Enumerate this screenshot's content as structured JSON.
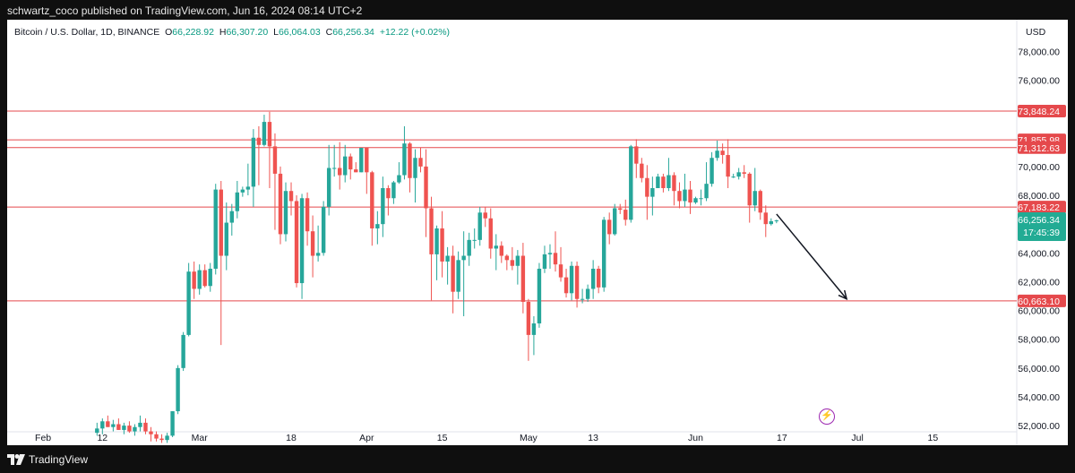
{
  "header": {
    "published_text": "schwartz_coco published on TradingView.com, Jun 16, 2024 08:14 UTC+2"
  },
  "legend": {
    "symbol": "Bitcoin / U.S. Dollar, 1D, BINANCE",
    "o_label": "O",
    "o_value": "66,228.92",
    "h_label": "H",
    "h_value": "66,307.20",
    "l_label": "L",
    "l_value": "66,064.03",
    "c_label": "C",
    "c_value": "66,256.34",
    "change": "+12.22 (+0.02%)"
  },
  "currency": "USD",
  "footer": {
    "brand": "TradingView"
  },
  "colors": {
    "up": "#26a69a",
    "down": "#ef5350",
    "level_line": "#e5494c",
    "price_badge": "#22ab94",
    "arrow": "#131722"
  },
  "chart_data": {
    "type": "candlestick",
    "symbol": "BTCUSD",
    "exchange": "BINANCE",
    "interval": "1D",
    "x_tick_labels": [
      "Feb",
      "12",
      "Mar",
      "18",
      "Apr",
      "15",
      "May",
      "13",
      "Jun",
      "17",
      "Jul",
      "15"
    ],
    "y_tick_labels": [
      "52,000.00",
      "54,000.00",
      "56,000.00",
      "58,000.00",
      "60,000.00",
      "62,000.00",
      "64,000.00",
      "66,000.00",
      "68,000.00",
      "70,000.00",
      "72,000.00",
      "74,000.00",
      "76,000.00",
      "78,000.00"
    ],
    "ylim": [
      50700,
      80200
    ],
    "horizontal_levels": [
      {
        "price": 73848.24,
        "label": "73,848.24"
      },
      {
        "price": 71855.98,
        "label": "71,855.98"
      },
      {
        "price": 71312.63,
        "label": "71,312.63"
      },
      {
        "price": 67183.22,
        "label": "67,183.22"
      },
      {
        "price": 60663.1,
        "label": "60,663.10"
      }
    ],
    "last_price": {
      "label": "66,256.34",
      "countdown": "17:45:39"
    },
    "projection_arrow": {
      "from": {
        "date": "2024-06-16",
        "price": 66700
      },
      "to": {
        "date": "2024-06-29",
        "price": 60800
      }
    },
    "candles": [
      [
        "2024-02-11",
        51500,
        52200,
        51300,
        51800
      ],
      [
        "2024-02-12",
        51800,
        52500,
        51400,
        52300
      ],
      [
        "2024-02-13",
        52300,
        52700,
        51900,
        51900
      ],
      [
        "2024-02-14",
        51900,
        52400,
        51600,
        52100
      ],
      [
        "2024-02-15",
        52100,
        52500,
        51700,
        51700
      ],
      [
        "2024-02-16",
        51700,
        52200,
        51400,
        52000
      ],
      [
        "2024-02-17",
        52000,
        52300,
        51500,
        51600
      ],
      [
        "2024-02-18",
        51600,
        52100,
        51300,
        51900
      ],
      [
        "2024-02-19",
        51900,
        52700,
        51600,
        52200
      ],
      [
        "2024-02-20",
        52200,
        52500,
        51400,
        51600
      ],
      [
        "2024-02-21",
        51600,
        51900,
        50900,
        51400
      ],
      [
        "2024-02-22",
        51400,
        51600,
        50900,
        51100
      ],
      [
        "2024-02-23",
        51100,
        51400,
        50800,
        51000
      ],
      [
        "2024-02-24",
        51000,
        51500,
        50800,
        51300
      ],
      [
        "2024-02-25",
        51300,
        53000,
        51200,
        53000
      ],
      [
        "2024-02-26",
        53000,
        56200,
        52800,
        56000
      ],
      [
        "2024-02-27",
        56000,
        58500,
        55800,
        58300
      ],
      [
        "2024-02-28",
        58300,
        63300,
        58200,
        62700
      ],
      [
        "2024-02-29",
        62700,
        63400,
        60800,
        61500
      ],
      [
        "2024-03-01",
        61500,
        63200,
        61100,
        62800
      ],
      [
        "2024-03-02",
        62800,
        63200,
        61600,
        61700
      ],
      [
        "2024-03-03",
        61700,
        63300,
        61300,
        62900
      ],
      [
        "2024-03-04",
        62900,
        68800,
        62500,
        68400
      ],
      [
        "2024-03-05",
        68400,
        69000,
        57600,
        63800
      ],
      [
        "2024-03-06",
        63800,
        67500,
        62800,
        66100
      ],
      [
        "2024-03-07",
        66100,
        67400,
        65200,
        66900
      ],
      [
        "2024-03-08",
        66900,
        69000,
        66400,
        68200
      ],
      [
        "2024-03-09",
        68200,
        68600,
        67900,
        68400
      ],
      [
        "2024-03-10",
        68400,
        70200,
        68000,
        68600
      ],
      [
        "2024-03-11",
        68600,
        72600,
        67200,
        72000
      ],
      [
        "2024-03-12",
        72000,
        72800,
        68700,
        71500
      ],
      [
        "2024-03-13",
        71500,
        73600,
        71400,
        73100
      ],
      [
        "2024-03-14",
        73100,
        73800,
        68500,
        71400
      ],
      [
        "2024-03-15",
        71400,
        72300,
        65600,
        69500
      ],
      [
        "2024-03-16",
        69500,
        70000,
        64600,
        65300
      ],
      [
        "2024-03-17",
        65300,
        68900,
        64800,
        68300
      ],
      [
        "2024-03-18",
        68300,
        68900,
        66600,
        67600
      ],
      [
        "2024-03-19",
        67600,
        68000,
        61600,
        61900
      ],
      [
        "2024-03-20",
        61900,
        68100,
        60800,
        67800
      ],
      [
        "2024-03-21",
        67800,
        68200,
        64500,
        65500
      ],
      [
        "2024-03-22",
        65500,
        66600,
        62300,
        63800
      ],
      [
        "2024-03-23",
        63800,
        65900,
        63400,
        64000
      ],
      [
        "2024-03-24",
        64000,
        67600,
        63800,
        67200
      ],
      [
        "2024-03-25",
        67200,
        71500,
        66600,
        69900
      ],
      [
        "2024-03-26",
        69900,
        71500,
        69300,
        69900
      ],
      [
        "2024-03-27",
        69900,
        71700,
        68400,
        69400
      ],
      [
        "2024-03-28",
        69400,
        71500,
        68900,
        70700
      ],
      [
        "2024-03-29",
        70700,
        70900,
        69100,
        69800
      ],
      [
        "2024-03-30",
        69800,
        70300,
        69600,
        69600
      ],
      [
        "2024-03-31",
        69600,
        71300,
        69600,
        71300
      ],
      [
        "2024-04-01",
        71300,
        71300,
        68100,
        69600
      ],
      [
        "2024-04-02",
        69600,
        69700,
        64500,
        65700
      ],
      [
        "2024-04-03",
        65700,
        66900,
        64600,
        66000
      ],
      [
        "2024-04-04",
        66000,
        69300,
        65100,
        68500
      ],
      [
        "2024-04-05",
        68500,
        68700,
        66600,
        67800
      ],
      [
        "2024-04-06",
        67800,
        69000,
        67400,
        68900
      ],
      [
        "2024-04-07",
        68900,
        70300,
        68800,
        69400
      ],
      [
        "2024-04-08",
        69400,
        72800,
        69100,
        71600
      ],
      [
        "2024-04-09",
        71600,
        71700,
        68200,
        69200
      ],
      [
        "2024-04-10",
        69200,
        71200,
        67500,
        70600
      ],
      [
        "2024-04-11",
        70600,
        71300,
        69600,
        70000
      ],
      [
        "2024-04-12",
        70000,
        71200,
        65100,
        67100
      ],
      [
        "2024-04-13",
        67100,
        67900,
        60700,
        63900
      ],
      [
        "2024-04-14",
        63900,
        65900,
        62100,
        65700
      ],
      [
        "2024-04-15",
        65700,
        66900,
        62300,
        63400
      ],
      [
        "2024-04-16",
        63400,
        64400,
        61800,
        63800
      ],
      [
        "2024-04-17",
        63800,
        64500,
        59800,
        61300
      ],
      [
        "2024-04-18",
        61300,
        64100,
        60800,
        63500
      ],
      [
        "2024-04-19",
        63500,
        65500,
        59600,
        63800
      ],
      [
        "2024-04-20",
        63800,
        65400,
        63100,
        64900
      ],
      [
        "2024-04-21",
        64900,
        65700,
        64300,
        64900
      ],
      [
        "2024-04-22",
        64900,
        67200,
        64500,
        66800
      ],
      [
        "2024-04-23",
        66800,
        67200,
        65800,
        66400
      ],
      [
        "2024-04-24",
        66400,
        67100,
        63600,
        64300
      ],
      [
        "2024-04-25",
        64300,
        65300,
        62800,
        64500
      ],
      [
        "2024-04-26",
        64500,
        64800,
        63300,
        63800
      ],
      [
        "2024-04-27",
        63800,
        63900,
        62800,
        63500
      ],
      [
        "2024-04-28",
        63500,
        64400,
        62800,
        63100
      ],
      [
        "2024-04-29",
        63100,
        64200,
        61800,
        63800
      ],
      [
        "2024-04-30",
        63800,
        64700,
        59800,
        60600
      ],
      [
        "2024-05-01",
        60600,
        60800,
        56500,
        58300
      ],
      [
        "2024-05-02",
        58300,
        59600,
        56900,
        59100
      ],
      [
        "2024-05-03",
        59100,
        63300,
        58800,
        62900
      ],
      [
        "2024-05-04",
        62900,
        64500,
        62600,
        63900
      ],
      [
        "2024-05-05",
        63900,
        64600,
        62900,
        64000
      ],
      [
        "2024-05-06",
        64000,
        65500,
        62700,
        63200
      ],
      [
        "2024-05-07",
        63200,
        64400,
        62000,
        62300
      ],
      [
        "2024-05-08",
        62300,
        62900,
        60900,
        61200
      ],
      [
        "2024-05-09",
        61200,
        63400,
        60700,
        63100
      ],
      [
        "2024-05-10",
        63100,
        63400,
        60200,
        60800
      ],
      [
        "2024-05-11",
        60800,
        61500,
        60500,
        60800
      ],
      [
        "2024-05-12",
        60800,
        61800,
        60600,
        61500
      ],
      [
        "2024-05-13",
        61500,
        63500,
        60800,
        62900
      ],
      [
        "2024-05-14",
        62900,
        63100,
        61200,
        61600
      ],
      [
        "2024-05-15",
        61600,
        66500,
        61300,
        66300
      ],
      [
        "2024-05-16",
        66300,
        66800,
        64600,
        65300
      ],
      [
        "2024-05-17",
        65300,
        67400,
        65200,
        67100
      ],
      [
        "2024-05-18",
        67100,
        67400,
        66700,
        67000
      ],
      [
        "2024-05-19",
        67000,
        67700,
        65900,
        66300
      ],
      [
        "2024-05-20",
        66300,
        71500,
        66100,
        71400
      ],
      [
        "2024-05-21",
        71400,
        71900,
        69200,
        70200
      ],
      [
        "2024-05-22",
        70200,
        70600,
        68900,
        69200
      ],
      [
        "2024-05-23",
        69200,
        70100,
        66300,
        67900
      ],
      [
        "2024-05-24",
        67900,
        69300,
        66600,
        68500
      ],
      [
        "2024-05-25",
        68500,
        69500,
        68500,
        69300
      ],
      [
        "2024-05-26",
        69300,
        69500,
        68200,
        68500
      ],
      [
        "2024-05-27",
        68500,
        70600,
        68300,
        69400
      ],
      [
        "2024-05-28",
        69400,
        69600,
        67300,
        68300
      ],
      [
        "2024-05-29",
        68300,
        68900,
        67100,
        67600
      ],
      [
        "2024-05-30",
        67600,
        69500,
        67200,
        68400
      ],
      [
        "2024-05-31",
        68400,
        69000,
        66700,
        67500
      ],
      [
        "2024-06-01",
        67500,
        67900,
        67400,
        67800
      ],
      [
        "2024-06-02",
        67800,
        68400,
        67300,
        67800
      ],
      [
        "2024-06-03",
        67800,
        70300,
        67600,
        68800
      ],
      [
        "2024-06-04",
        68800,
        71000,
        68600,
        70600
      ],
      [
        "2024-06-05",
        70600,
        71800,
        70400,
        71100
      ],
      [
        "2024-06-06",
        71100,
        71600,
        70200,
        70800
      ],
      [
        "2024-06-07",
        70800,
        71900,
        68500,
        69300
      ],
      [
        "2024-06-08",
        69300,
        69500,
        69200,
        69300
      ],
      [
        "2024-06-09",
        69300,
        69900,
        69100,
        69600
      ],
      [
        "2024-06-10",
        69600,
        70100,
        69200,
        69500
      ],
      [
        "2024-06-11",
        69500,
        69600,
        66100,
        67300
      ],
      [
        "2024-06-12",
        67300,
        69900,
        66900,
        68300
      ],
      [
        "2024-06-13",
        68300,
        68400,
        66300,
        66800
      ],
      [
        "2024-06-14",
        66800,
        67300,
        65100,
        66000
      ],
      [
        "2024-06-15",
        66000,
        66400,
        65900,
        66200
      ],
      [
        "2024-06-16",
        66228.92,
        66307.2,
        66064.03,
        66256.34
      ]
    ]
  }
}
